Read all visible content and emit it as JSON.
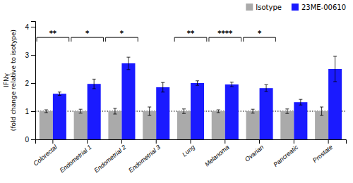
{
  "chart_data": {
    "type": "bar",
    "categories": [
      "Colorectal",
      "Endometrial 1",
      "Endometrial 2",
      "Endometrial 3",
      "Lung",
      "Melanoma",
      "Ovarian",
      "Pancreatic",
      "Prostate"
    ],
    "series": [
      {
        "name": "Isotype",
        "color": "#aaaaaa",
        "values": [
          1.0,
          1.0,
          1.0,
          1.0,
          1.0,
          1.0,
          1.0,
          1.0,
          1.0
        ],
        "errors": [
          0.05,
          0.07,
          0.1,
          0.15,
          0.08,
          0.05,
          0.07,
          0.08,
          0.15
        ]
      },
      {
        "name": "23ME-00610",
        "color": "#1a1aff",
        "values": [
          1.62,
          1.97,
          2.7,
          1.85,
          2.0,
          1.95,
          1.82,
          1.32,
          2.5
        ],
        "errors": [
          0.06,
          0.17,
          0.22,
          0.17,
          0.08,
          0.08,
          0.12,
          0.1,
          0.45
        ]
      }
    ],
    "ylabel": "IFNγ\n(fold change relative to isotype)",
    "ylim": [
      0,
      4.2
    ],
    "yticks": [
      0,
      1,
      2,
      3,
      4
    ],
    "hline": 1.0,
    "annotations": [
      {
        "category": "Colorectal",
        "text": "**",
        "y": 3.62
      },
      {
        "category": "Endometrial 1",
        "text": "*",
        "y": 3.62
      },
      {
        "category": "Endometrial 2",
        "text": "*",
        "y": 3.62
      },
      {
        "category": "Lung",
        "text": "**",
        "y": 3.62
      },
      {
        "category": "Melanoma",
        "text": "****",
        "y": 3.62
      },
      {
        "category": "Ovarian",
        "text": "*",
        "y": 3.62
      }
    ],
    "legend": "upper right"
  }
}
